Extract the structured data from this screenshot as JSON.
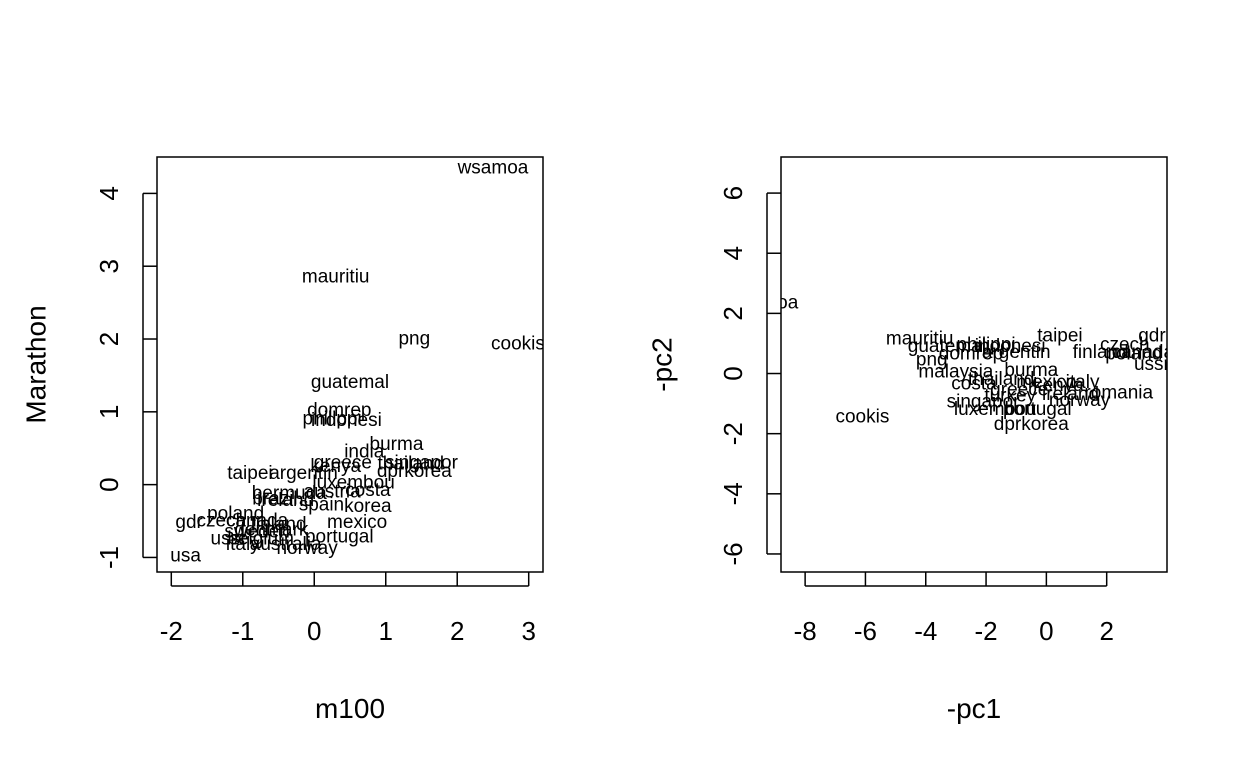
{
  "chart_data": [
    {
      "type": "scatter",
      "xlabel": "m100",
      "ylabel": "Marathon",
      "xlim": [
        -2.2,
        3.2
      ],
      "ylim": [
        -1.2,
        4.5
      ],
      "xticks": [
        -2,
        -1,
        0,
        1,
        2,
        3
      ],
      "yticks": [
        -1,
        0,
        1,
        2,
        3,
        4
      ],
      "points": [
        {
          "label": "wsamoa",
          "x": 2.5,
          "y": 4.35
        },
        {
          "label": "mauritiu",
          "x": 0.3,
          "y": 2.85
        },
        {
          "label": "png",
          "x": 1.4,
          "y": 2.0
        },
        {
          "label": "cookis",
          "x": 2.85,
          "y": 1.93
        },
        {
          "label": "guatemal",
          "x": 0.5,
          "y": 1.4
        },
        {
          "label": "domrep",
          "x": 0.35,
          "y": 1.02
        },
        {
          "label": "philippi",
          "x": 0.25,
          "y": 0.9
        },
        {
          "label": "indonesi",
          "x": 0.45,
          "y": 0.88
        },
        {
          "label": "burma",
          "x": 1.15,
          "y": 0.55
        },
        {
          "label": "india",
          "x": 0.7,
          "y": 0.45
        },
        {
          "label": "greece",
          "x": 0.4,
          "y": 0.3
        },
        {
          "label": "kenya",
          "x": 0.3,
          "y": 0.25
        },
        {
          "label": "singapor",
          "x": 1.5,
          "y": 0.3
        },
        {
          "label": "thailand",
          "x": 1.35,
          "y": 0.28
        },
        {
          "label": "dprkorea",
          "x": 1.4,
          "y": 0.18
        },
        {
          "label": "taipei",
          "x": -0.9,
          "y": 0.15
        },
        {
          "label": "argentin",
          "x": -0.15,
          "y": 0.15
        },
        {
          "label": "luxembou",
          "x": 0.55,
          "y": 0.02
        },
        {
          "label": "bermuda",
          "x": -0.35,
          "y": -0.12
        },
        {
          "label": "austria",
          "x": 0.25,
          "y": -0.1
        },
        {
          "label": "costa",
          "x": 0.75,
          "y": -0.08
        },
        {
          "label": "brazil",
          "x": -0.55,
          "y": -0.2
        },
        {
          "label": "ireland",
          "x": -0.4,
          "y": -0.22
        },
        {
          "label": "spain",
          "x": 0.1,
          "y": -0.28
        },
        {
          "label": "korea",
          "x": 0.75,
          "y": -0.3
        },
        {
          "label": "poland",
          "x": -1.1,
          "y": -0.4
        },
        {
          "label": "mexico",
          "x": 0.6,
          "y": -0.52
        },
        {
          "label": "gdr",
          "x": -1.75,
          "y": -0.52
        },
        {
          "label": "czech",
          "x": -1.3,
          "y": -0.5
        },
        {
          "label": "canada",
          "x": -0.8,
          "y": -0.5
        },
        {
          "label": "finland",
          "x": -0.5,
          "y": -0.55
        },
        {
          "label": "sweden",
          "x": -0.8,
          "y": -0.65
        },
        {
          "label": "denmark",
          "x": -0.6,
          "y": -0.62
        },
        {
          "label": "belgium",
          "x": -0.75,
          "y": -0.75
        },
        {
          "label": "portugal",
          "x": 0.35,
          "y": -0.72
        },
        {
          "label": "ussr",
          "x": -1.2,
          "y": -0.75
        },
        {
          "label": "italy",
          "x": -1.0,
          "y": -0.82
        },
        {
          "label": "australia",
          "x": -0.4,
          "y": -0.82
        },
        {
          "label": "norway",
          "x": -0.1,
          "y": -0.88
        },
        {
          "label": "usa",
          "x": -1.8,
          "y": -0.98
        }
      ]
    },
    {
      "type": "scatter",
      "xlabel": "-pc1",
      "ylabel": "-pc2",
      "xlim": [
        -8.8,
        4.0
      ],
      "ylim": [
        -6.6,
        7.2
      ],
      "xticks": [
        -8,
        -6,
        -4,
        -2,
        0,
        2
      ],
      "yticks": [
        -6,
        -4,
        -2,
        0,
        2,
        4,
        6
      ],
      "points": [
        {
          "label": "wsamoa",
          "x": -9.4,
          "y": 2.35
        },
        {
          "label": "cookis",
          "x": -6.1,
          "y": -1.45
        },
        {
          "label": "mauritiu",
          "x": -4.2,
          "y": 1.15
        },
        {
          "label": "guatemal",
          "x": -3.3,
          "y": 0.9
        },
        {
          "label": "philippi",
          "x": -2.0,
          "y": 0.95
        },
        {
          "label": "indonesi",
          "x": -1.2,
          "y": 0.9
        },
        {
          "label": "png",
          "x": -3.8,
          "y": 0.45
        },
        {
          "label": "domrep",
          "x": -2.5,
          "y": 0.65
        },
        {
          "label": "argentin",
          "x": -1.0,
          "y": 0.7
        },
        {
          "label": "taipei",
          "x": 0.45,
          "y": 1.25
        },
        {
          "label": "gdr",
          "x": 3.5,
          "y": 1.25
        },
        {
          "label": "czech",
          "x": 2.6,
          "y": 0.95
        },
        {
          "label": "finland",
          "x": 1.8,
          "y": 0.7
        },
        {
          "label": "poland",
          "x": 2.9,
          "y": 0.65
        },
        {
          "label": "canada",
          "x": 3.2,
          "y": 0.7
        },
        {
          "label": "ussr",
          "x": 3.5,
          "y": 0.3
        },
        {
          "label": "malaysia",
          "x": -3.0,
          "y": 0.05
        },
        {
          "label": "burma",
          "x": -0.5,
          "y": 0.1
        },
        {
          "label": "thailand",
          "x": -1.5,
          "y": -0.2
        },
        {
          "label": "mexico",
          "x": 0.0,
          "y": -0.3
        },
        {
          "label": "costa",
          "x": -2.4,
          "y": -0.35
        },
        {
          "label": "italy",
          "x": 1.2,
          "y": -0.3
        },
        {
          "label": "kenya",
          "x": 0.4,
          "y": -0.4
        },
        {
          "label": "greece",
          "x": -0.9,
          "y": -0.55
        },
        {
          "label": "romania",
          "x": 2.4,
          "y": -0.65
        },
        {
          "label": "ireland",
          "x": 0.8,
          "y": -0.7
        },
        {
          "label": "singapor",
          "x": -2.1,
          "y": -0.95
        },
        {
          "label": "turkey",
          "x": -1.2,
          "y": -0.75
        },
        {
          "label": "norway",
          "x": 1.1,
          "y": -0.9
        },
        {
          "label": "luxembou",
          "x": -1.7,
          "y": -1.2
        },
        {
          "label": "portugal",
          "x": -0.3,
          "y": -1.2
        },
        {
          "label": "dprkorea",
          "x": -0.5,
          "y": -1.7
        }
      ]
    }
  ]
}
